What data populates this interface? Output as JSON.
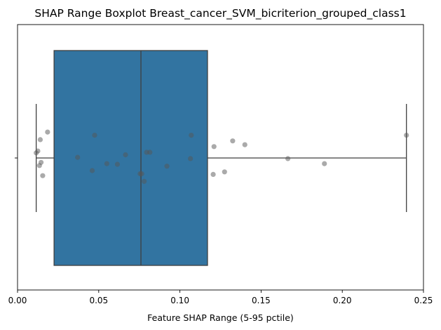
{
  "chart_data": {
    "type": "boxplot",
    "title": "SHAP Range Boxplot Breast_cancer_SVM_bicriterion_grouped_class1",
    "xlabel": "Feature SHAP Range (5-95 pctile)",
    "ylabel": "",
    "xlim": [
      0.0,
      0.25
    ],
    "xticks": [
      0.0,
      0.05,
      0.1,
      0.15,
      0.2,
      0.25
    ],
    "xtick_labels": [
      "0.00",
      "0.05",
      "0.10",
      "0.15",
      "0.20",
      "0.25"
    ],
    "orientation": "horizontal",
    "grid": false,
    "box": {
      "whisker_low": 0.0115,
      "q1": 0.0225,
      "median": 0.076,
      "q3": 0.117,
      "whisker_high": 0.2395,
      "color": "#3274a1"
    },
    "points": {
      "color": "#555555",
      "values": [
        0.0115,
        0.0125,
        0.0135,
        0.014,
        0.0145,
        0.0155,
        0.0185,
        0.037,
        0.046,
        0.0475,
        0.055,
        0.0615,
        0.0665,
        0.0755,
        0.0765,
        0.078,
        0.0795,
        0.0815,
        0.092,
        0.1065,
        0.107,
        0.1205,
        0.121,
        0.1275,
        0.1325,
        0.14,
        0.1665,
        0.189,
        0.2395
      ],
      "jitter": [
        -0.08,
        -0.11,
        0.12,
        -0.29,
        0.07,
        0.28,
        -0.41,
        -0.01,
        0.2,
        -0.36,
        0.09,
        0.1,
        -0.05,
        0.25,
        0.25,
        0.37,
        -0.09,
        -0.09,
        0.13,
        0.01,
        -0.36,
        0.26,
        -0.18,
        0.22,
        -0.27,
        -0.21,
        0.01,
        0.09,
        -0.36
      ]
    }
  }
}
